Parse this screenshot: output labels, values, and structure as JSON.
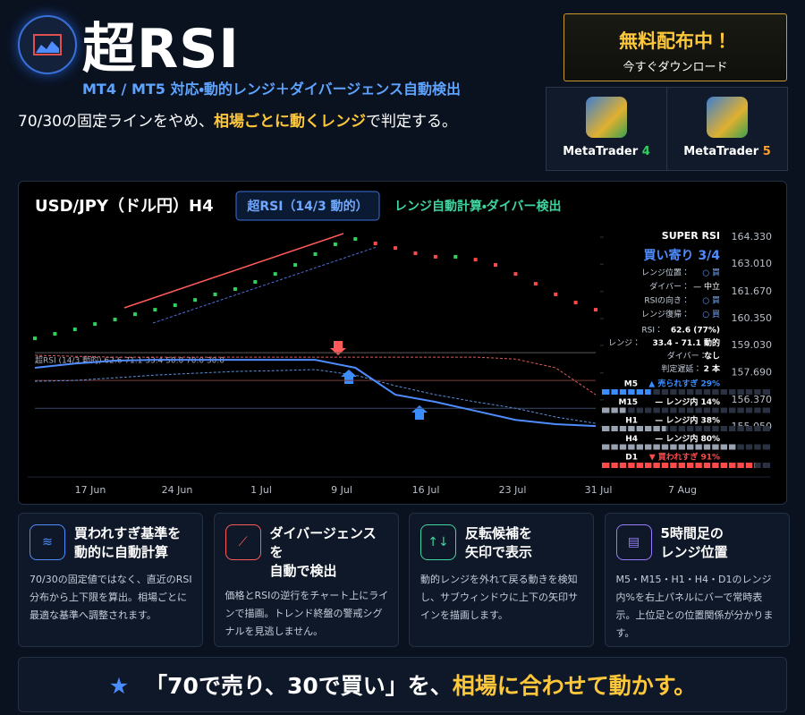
{
  "header": {
    "title": "超RSI",
    "subtitle": "MT4 / MT5 対応・動的レンジ＋ダイバージェンス自動検出",
    "tagline": [
      "70/30の固定ラインをやめ、",
      "相場ごとに動くレンジ",
      "で判定する。"
    ]
  },
  "download": {
    "headline": "無料配布中！",
    "cta": "今すぐダウンロード",
    "platforms": [
      {
        "name": "MetaTrader",
        "version": "4"
      },
      {
        "name": "MetaTrader",
        "version": "5"
      }
    ]
  },
  "chart": {
    "type": "price",
    "title": "USD/JPY（ドル円）H4",
    "badge": "超RSI（14/3 動的）",
    "note": "レンジ自動計算・ダイバー検出",
    "indicator_label": "超RSI (14/3 動的) 62.6 71.1 33.4 50.0 70.0 30.0",
    "x_labels": [
      "17 Jun",
      "24 Jun",
      "1 Jul",
      "9 Jul",
      "16 Jul",
      "23 Jul",
      "31 Jul",
      "7 Aug"
    ],
    "ylim": [
      155.05,
      164.33
    ],
    "yticks": [
      {
        "value": 164.33,
        "label": "164.330"
      },
      {
        "value": 163.01,
        "label": "163.010"
      },
      {
        "value": 161.67,
        "label": "161.670"
      },
      {
        "value": 160.35,
        "label": "160.350"
      },
      {
        "value": 159.03,
        "label": "159.030"
      },
      {
        "value": 157.69,
        "label": "157.690"
      },
      {
        "value": 156.37,
        "label": "156.370"
      },
      {
        "value": 155.05,
        "label": "155.050"
      }
    ],
    "price": [
      159.38,
      159.6,
      159.82,
      160.08,
      160.3,
      160.56,
      160.78,
      161.0,
      161.26,
      161.53,
      161.79,
      162.14,
      162.53,
      162.97,
      163.5,
      163.98,
      164.24,
      164.02,
      163.8,
      163.54,
      163.37,
      163.37,
      163.23,
      162.97,
      162.53,
      162.05,
      161.53,
      161.13,
      160.78
    ],
    "up_color": "#2fd15f",
    "down_color": "#ff4a4a",
    "rsi": {
      "color": "#4f8dff",
      "values": [
        157.94,
        158.15,
        158.29,
        158.33,
        158.33,
        158.33,
        158.33,
        158.33,
        157.94,
        156.62,
        156.27,
        155.83,
        155.39,
        155.18,
        155.09
      ]
    },
    "upper_band": {
      "color": "#e05a5a",
      "values": [
        158.55,
        158.5,
        158.46,
        158.46,
        158.46,
        158.46,
        158.46,
        158.46,
        158.46,
        158.46,
        158.46,
        158.46,
        158.37,
        157.94,
        156.62
      ]
    },
    "lower_band": {
      "color": "#5a8fd8",
      "values": [
        157.28,
        157.32,
        157.45,
        157.58,
        157.67,
        157.76,
        157.8,
        157.85,
        157.58,
        157.06,
        156.62,
        156.27,
        155.96,
        155.53,
        155.22
      ]
    },
    "levels": {
      "colors": [
        "#5a5a5a",
        "#7a3a3a",
        "#3a4a6a"
      ],
      "values": [
        158.68,
        157.32,
        155.96
      ]
    },
    "panel": {
      "title": "SUPER RSI",
      "verdict": "買い寄り 3/4",
      "signals": [
        {
          "label": "レンジ位置：",
          "value": "○ 買"
        },
        {
          "label": "ダイバー：",
          "value": "— 中立"
        },
        {
          "label": "RSIの向き：",
          "value": "○ 買"
        },
        {
          "label": "レンジ復帰：",
          "value": "○ 買"
        }
      ],
      "stats": [
        {
          "label": "RSI：",
          "value": "62.6 (77%)"
        },
        {
          "label": "レンジ：",
          "value": "33.4 - 71.1 動的"
        },
        {
          "label": "ダイバー：",
          "value": "なし"
        },
        {
          "label": "判定遅延：",
          "value": "2 本"
        }
      ],
      "timeframes": [
        {
          "tf": "M5",
          "label": "▲ 売られすぎ 29%",
          "value": 29,
          "color": "#3b8cff"
        },
        {
          "tf": "M15",
          "label": "— レンジ内 14%",
          "value": 14,
          "color": "#9aa3b2"
        },
        {
          "tf": "H1",
          "label": "— レンジ内 38%",
          "value": 38,
          "color": "#9aa3b2"
        },
        {
          "tf": "H4",
          "label": "— レンジ内 80%",
          "value": 80,
          "color": "#9aa3b2"
        },
        {
          "tf": "D1",
          "label": "▼ 買われすぎ 91%",
          "value": 91,
          "color": "#ff4a4a"
        }
      ]
    }
  },
  "features": [
    {
      "title": [
        "買われすぎ基準を",
        "動的に自動計算"
      ],
      "text": "70/30の固定値ではなく、直近のRSI分布から上下限を算出。相場ごとに最適な基準へ調整されます。"
    },
    {
      "title": [
        "ダイバージェンス",
        "を",
        "自動で検出"
      ],
      "text": "価格とRSIの逆行をチャート上にラインで描画。トレンド終盤の警戒シグナルを見逃しません。"
    },
    {
      "title": [
        "反転候補を",
        "矢印で表示"
      ],
      "text": "動的レンジを外れて戻る動きを検知し、サブウィンドウに上下の矢印サインを描画します。"
    },
    {
      "title": [
        "5時間足の",
        "レンジ位置"
      ],
      "text": "M5・M15・H1・H4・D1のレンジ内%を右上パネルにバーで常時表示。上位足との位置関係が分かります。"
    }
  ],
  "banner": {
    "star": "★",
    "text": "「70で売り、30で買い」を、",
    "highlight": "相場に合わせて動かす。"
  }
}
